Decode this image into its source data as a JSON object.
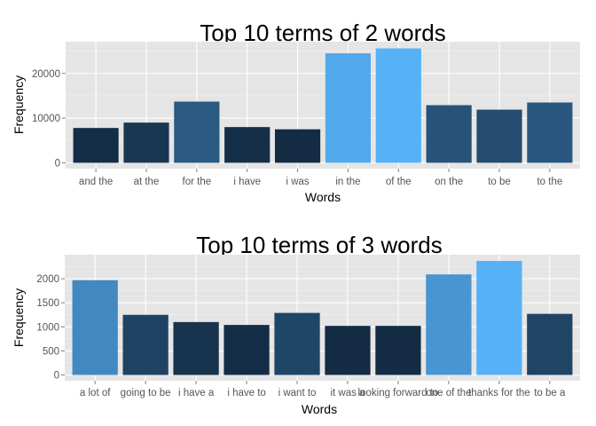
{
  "chart_data": [
    {
      "type": "bar",
      "title": "Top 10 terms of 2 words",
      "xlabel": "Words",
      "ylabel": "Frequency",
      "categories": [
        "and the",
        "at the",
        "for the",
        "i have",
        "i was",
        "in the",
        "of the",
        "on the",
        "to be",
        "to the"
      ],
      "values": [
        7800,
        9000,
        13700,
        8000,
        7500,
        24500,
        25600,
        12900,
        11900,
        13500
      ],
      "ylim": [
        -1300,
        27100
      ],
      "yticks": [
        0,
        10000,
        20000
      ],
      "ytick_labels": [
        "0",
        "10000",
        "20000"
      ],
      "grid": true,
      "color_scale": {
        "low": "#132B43",
        "high": "#56B1F7"
      }
    },
    {
      "type": "bar",
      "title": "Top 10 terms of 3 words",
      "xlabel": "Words",
      "ylabel": "Frequency",
      "categories": [
        "a lot of",
        "going to be",
        "i have a",
        "i have to",
        "i want to",
        "it was a",
        "looking forward to",
        "one of the",
        "thanks for the",
        "to be a"
      ],
      "values": [
        1970,
        1250,
        1100,
        1040,
        1290,
        1020,
        1020,
        2090,
        2370,
        1270
      ],
      "ylim": [
        -120,
        2500
      ],
      "yticks": [
        0,
        500,
        1000,
        1500,
        2000
      ],
      "ytick_labels": [
        "0",
        "500",
        "1000",
        "1500",
        "2000"
      ],
      "grid": true,
      "color_scale": {
        "low": "#132B43",
        "high": "#56B1F7"
      }
    }
  ]
}
